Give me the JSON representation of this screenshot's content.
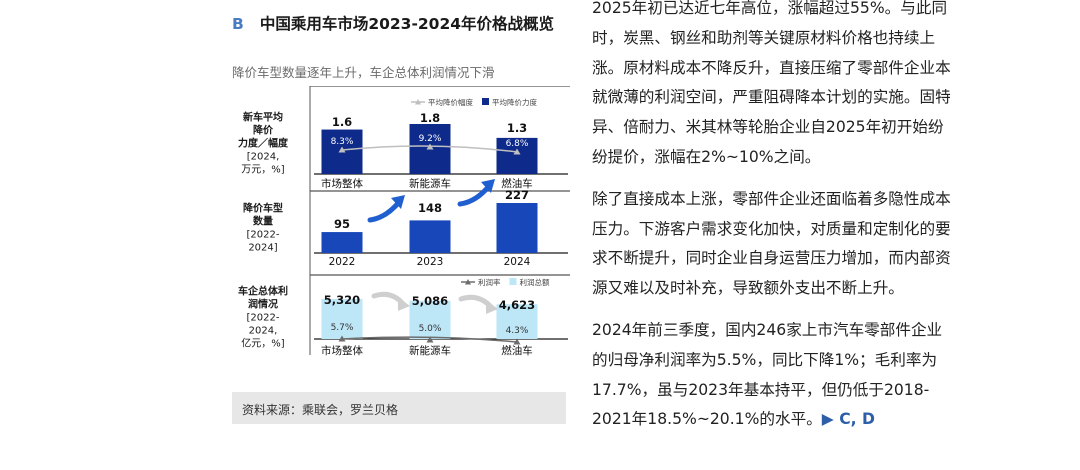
{
  "panel": {
    "letter": "B",
    "title": "中国乘用车市场2023-2024年价格战概览",
    "subtitle": "降价车型数量逐年上升，车企总体利润情况下滑",
    "source": "资料来源：乘联会，罗兰贝格"
  },
  "chart_data": [
    {
      "type": "bar",
      "row_label": [
        "新车平均",
        "降价",
        "力度／幅度",
        "[2024,",
        "万元，%]"
      ],
      "legend": [
        {
          "name": "平均降价幅度",
          "marker": "line-triangle",
          "color": "#bfbfbf"
        },
        {
          "name": "平均降价力度",
          "marker": "square",
          "color": "#0e2a8a"
        }
      ],
      "categories": [
        "市场整体",
        "新能源车",
        "燃油车"
      ],
      "bar_values": [
        1.6,
        1.8,
        1.3
      ],
      "bar_labels": [
        "1.6",
        "1.8",
        "1.3"
      ],
      "line_values": [
        8.3,
        9.2,
        6.8
      ],
      "line_labels": [
        "8.3%",
        "9.2%",
        "6.8%"
      ],
      "bar_color": "#0e2a8a",
      "line_color": "#bfbfbf"
    },
    {
      "type": "bar",
      "row_label": [
        "降价车型",
        "数量",
        "[2022-",
        "2024]"
      ],
      "categories": [
        "2022",
        "2023",
        "2024"
      ],
      "bar_values": [
        95,
        148,
        227
      ],
      "bar_labels": [
        "95",
        "148",
        "227"
      ],
      "bar_color": "#1747b8",
      "arrow_color": "#1f5fd0"
    },
    {
      "type": "bar",
      "row_label": [
        "车企总体利",
        "润情况",
        "[2022-",
        "2024,",
        "亿元，%]"
      ],
      "legend": [
        {
          "name": "利润率",
          "marker": "line-triangle",
          "color": "#6d6d6d"
        },
        {
          "name": "利润总额",
          "marker": "square",
          "color": "#bde6f7"
        }
      ],
      "categories": [
        "市场整体",
        "新能源车",
        "燃油车"
      ],
      "bar_values": [
        5320,
        5086,
        4623
      ],
      "bar_labels": [
        "5,320",
        "5,086",
        "4,623"
      ],
      "line_values": [
        5.7,
        5.0,
        4.3
      ],
      "line_labels": [
        "5.7%",
        "5.0%",
        "4.3%"
      ],
      "bar_color": "#bde6f7",
      "line_color": "#6d6d6d",
      "arrow_color": "#cfcfcf"
    }
  ],
  "article": {
    "paragraphs": [
      "2025年初已达近七年高位，涨幅超过55%。与此同时，炭黑、钢丝和助剂等关键原材料价格也持续上涨。原材料成本不降反升，直接压缩了零部件企业本就微薄的利润空间，严重阻碍降本计划的实施。固特异、倍耐力、米其林等轮胎企业自2025年初开始纷纷提价，涨幅在2%~10%之间。",
      "除了直接成本上涨，零部件企业还面临着多隐性成本压力。下游客户需求变化加快，对质量和定制化的要求不断提升，同时企业自身运营压力增加，而内部资源又难以及时补充，导致额外支出不断上升。",
      "2024年前三季度，国内246家上市汽车零部件企业的归母净利润率为5.5%，同比下降1%；毛利率为17.7%，虽与2023年基本持平，但仍低于2018-2021年18.5%~20.1%的水平。"
    ],
    "ref": "▶ C, D"
  }
}
